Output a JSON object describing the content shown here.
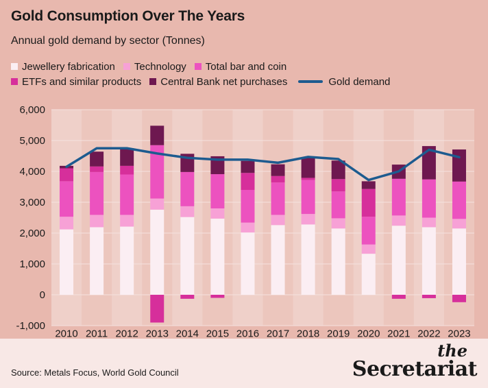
{
  "header": {
    "title": "Gold Consumption Over The Years",
    "subtitle": "Annual gold demand by sector (Tonnes)"
  },
  "legend": {
    "items": [
      {
        "label": "Jewellery fabrication",
        "color": "#fbeef3"
      },
      {
        "label": "Technology",
        "color": "#f7a1d6"
      },
      {
        "label": "Total bar and coin",
        "color": "#ec52bf"
      },
      {
        "label": "ETFs and similar products",
        "color": "#d62f9b"
      },
      {
        "label": "Central Bank net purchases",
        "color": "#6e1850"
      }
    ],
    "line": {
      "label": "Gold demand",
      "color": "#1d5b8f"
    }
  },
  "footer": {
    "source": "Source: Metals Focus, World Gold Council",
    "brand_the": "the",
    "brand_name": "Secretariat"
  },
  "chart_data": {
    "type": "bar",
    "stacked": true,
    "categories": [
      "2010",
      "2011",
      "2012",
      "2013",
      "2014",
      "2015",
      "2016",
      "2017",
      "2018",
      "2019",
      "2020",
      "2021",
      "2022",
      "2023"
    ],
    "ylim": [
      -1000,
      6000
    ],
    "yticks": [
      -1000,
      0,
      1000,
      2000,
      3000,
      4000,
      5000,
      6000
    ],
    "ytick_labels": [
      "-1,000",
      "0",
      "1,000",
      "2,000",
      "3,000",
      "4,000",
      "5,000",
      "6,000"
    ],
    "grid": true,
    "series": [
      {
        "name": "Jewellery fabrication",
        "color": "#fbeef3",
        "values": [
          2120,
          2190,
          2210,
          2760,
          2520,
          2470,
          2020,
          2260,
          2280,
          2150,
          1330,
          2240,
          2190,
          2150
        ]
      },
      {
        "name": "Technology",
        "color": "#f7a1d6",
        "values": [
          410,
          400,
          380,
          360,
          350,
          330,
          320,
          330,
          340,
          330,
          300,
          330,
          310,
          310
        ]
      },
      {
        "name": "Total bar and coin",
        "color": "#ec52bf",
        "values": [
          1150,
          1390,
          1310,
          1730,
          1110,
          1110,
          1060,
          1050,
          1100,
          870,
          900,
          1190,
          1240,
          1210
        ]
      },
      {
        "name": "ETFs and similar products",
        "color": "#d62f9b",
        "values": [
          420,
          180,
          280,
          -900,
          -130,
          -100,
          550,
          210,
          70,
          400,
          900,
          -130,
          -110,
          -240
        ]
      },
      {
        "name": "Central Bank net purchases",
        "color": "#6e1850",
        "values": [
          80,
          480,
          570,
          630,
          590,
          580,
          390,
          380,
          660,
          600,
          250,
          460,
          1080,
          1040
        ]
      }
    ],
    "line": {
      "name": "Gold demand",
      "color": "#1d5b8f",
      "values": [
        4150,
        4750,
        4750,
        4580,
        4440,
        4380,
        4380,
        4280,
        4470,
        4400,
        3720,
        4000,
        4700,
        4460
      ]
    }
  }
}
